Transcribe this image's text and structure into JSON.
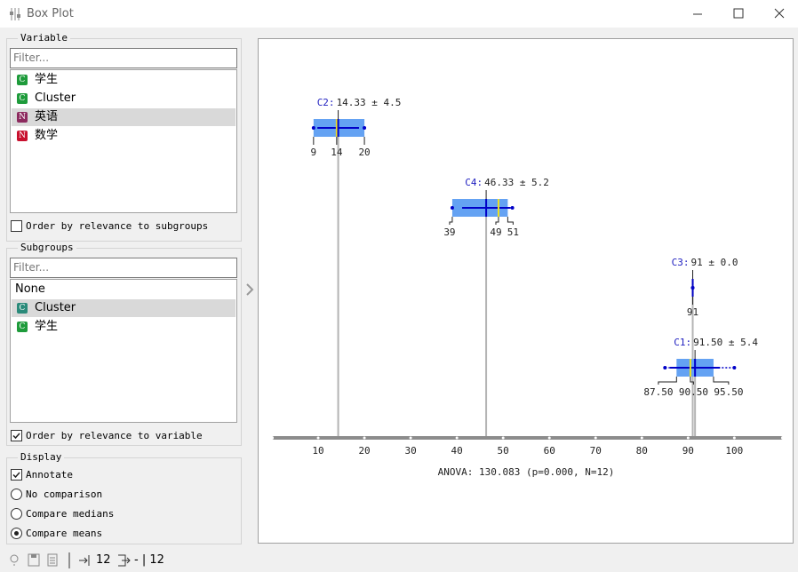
{
  "window": {
    "title": "Box Plot"
  },
  "variable": {
    "title": "Variable",
    "filter": "Filter...",
    "items": [
      {
        "badge": "C",
        "badge_color": "#1e9b3b",
        "name": "学生"
      },
      {
        "badge": "C",
        "badge_color": "#1e9b3b",
        "name": "Cluster"
      },
      {
        "badge": "N",
        "badge_color": "#8c2a5e",
        "name": "英语",
        "selected": true
      },
      {
        "badge": "N",
        "badge_color": "#c8102e",
        "name": "数学"
      }
    ],
    "order": {
      "label": "Order by relevance to subgroups",
      "checked": false
    }
  },
  "subgroups": {
    "title": "Subgroups",
    "filter": "Filter...",
    "items": [
      {
        "name": "None"
      },
      {
        "badge": "C",
        "badge_color": "#2a8a7a",
        "name": "Cluster",
        "selected": true
      },
      {
        "badge": "C",
        "badge_color": "#1e9b3b",
        "name": "学生"
      }
    ],
    "order": {
      "label": "Order by relevance to variable",
      "checked": true
    }
  },
  "display": {
    "title": "Display",
    "annotate": {
      "label": "Annotate",
      "checked": true
    },
    "options": [
      {
        "label": "No comparison"
      },
      {
        "label": "Compare medians"
      },
      {
        "label": "Compare means",
        "selected": true
      }
    ]
  },
  "status": {
    "input": "12",
    "output": "- | 12"
  },
  "chart_data": {
    "type": "box",
    "xlim": [
      0,
      110.5
    ],
    "xticks": [
      10,
      20,
      30,
      40,
      50,
      60,
      70,
      80,
      90,
      100
    ],
    "footer": "ANOVA: 130.083 (p=0.000, N=12)",
    "box_color": "#64a2f3",
    "line_color": "#0000c8",
    "median_color": "#f0e020",
    "mean_line_color": "#b4b4b4",
    "groups": [
      {
        "name": "C2:",
        "stat": "14.33 ± 4.5",
        "mean": 14.33,
        "sd": 4.5,
        "low": 9,
        "q1": 9,
        "median": 14,
        "q3": 20,
        "high": 20
      },
      {
        "name": "C4:",
        "stat": "46.33 ± 5.2",
        "mean": 46.33,
        "sd": 5.2,
        "low": 39,
        "q1": 39,
        "median": 49,
        "q3": 51,
        "high": 52
      },
      {
        "name": "C3:",
        "stat": "91 ± 0.0",
        "mean": 91,
        "sd": 0.0,
        "low": 91,
        "q1": 91,
        "median": 91,
        "q3": 91,
        "high": 91
      },
      {
        "name": "C1:",
        "stat": "91.50 ± 5.4",
        "mean": 91.5,
        "sd": 5.4,
        "low": 85,
        "q1": {
          "value": 87.5,
          "label": "87.50"
        },
        "median": {
          "value": 90.5,
          "label": "90.50"
        },
        "q3": {
          "value": 95.5,
          "label": "95.50"
        },
        "high": 100
      }
    ]
  }
}
